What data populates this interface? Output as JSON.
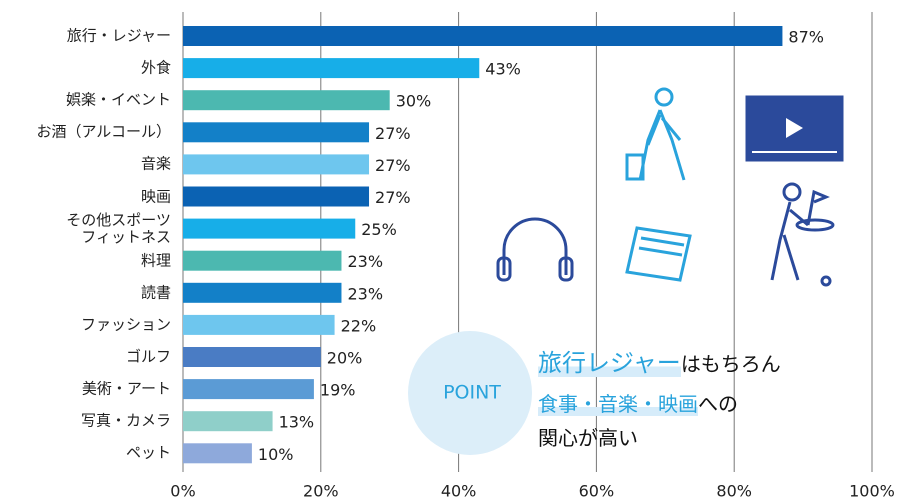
{
  "chart_data": {
    "type": "bar",
    "orientation": "horizontal",
    "categories": [
      "旅行・レジャー",
      "外食",
      "娯楽・イベント",
      "お酒（アルコール）",
      "音楽",
      "映画",
      "その他スポーツ\nフィットネス",
      "料理",
      "読書",
      "ファッション",
      "ゴルフ",
      "美術・アート",
      "写真・カメラ",
      "ペット"
    ],
    "values": [
      87,
      43,
      30,
      27,
      27,
      27,
      25,
      23,
      23,
      22,
      20,
      19,
      13,
      10
    ],
    "value_labels": [
      "87%",
      "43%",
      "30%",
      "27%",
      "27%",
      "27%",
      "25%",
      "23%",
      "23%",
      "22%",
      "20%",
      "19%",
      "13%",
      "10%"
    ],
    "colors": [
      "#0b62b3",
      "#17aee8",
      "#4cb8b0",
      "#1380c8",
      "#6ec6ee",
      "#0b62b3",
      "#17aee8",
      "#4cb8b0",
      "#1380c8",
      "#6ec6ee",
      "#4a7cc4",
      "#5b9bd5",
      "#8fcfc9",
      "#8ea9db"
    ],
    "xlim": [
      0,
      100
    ],
    "xticks": [
      {
        "value": 0,
        "label": "0%"
      },
      {
        "value": 20,
        "label": "20%"
      },
      {
        "value": 40,
        "label": "40%"
      },
      {
        "value": 60,
        "label": "60%"
      },
      {
        "value": 80,
        "label": "80%"
      },
      {
        "value": 100,
        "label": "100%"
      }
    ],
    "grid": true,
    "annotation": {
      "badge": "POINT",
      "line1_highlight": "旅行レジャー",
      "line1_rest": "はもちろん",
      "line2_highlight": "食事・音楽・映画",
      "line2_rest": "への",
      "line3": "関心が高い"
    }
  }
}
